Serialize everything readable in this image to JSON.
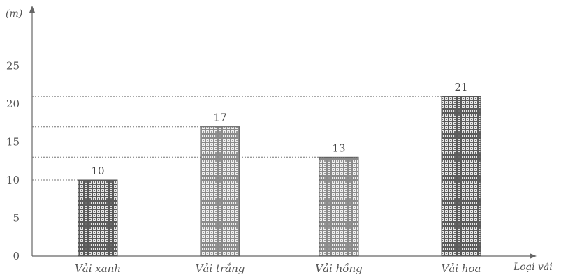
{
  "chart_data": {
    "type": "bar",
    "categories": [
      "Vải xanh",
      "Vải trắng",
      "Vải hồng",
      "Vải hoa"
    ],
    "values": [
      10,
      17,
      13,
      21
    ],
    "ylabel": "(m)",
    "xlabel": "Loại vải",
    "yticks": [
      0,
      5,
      10,
      15,
      20,
      25
    ],
    "ylim": [
      0,
      30
    ],
    "guide_lines": "dotted lines from y-axis to each bar top",
    "colors": {
      "bar_dark": "#555555",
      "bar_light": "#8a8a8a",
      "axis": "#666666"
    }
  }
}
